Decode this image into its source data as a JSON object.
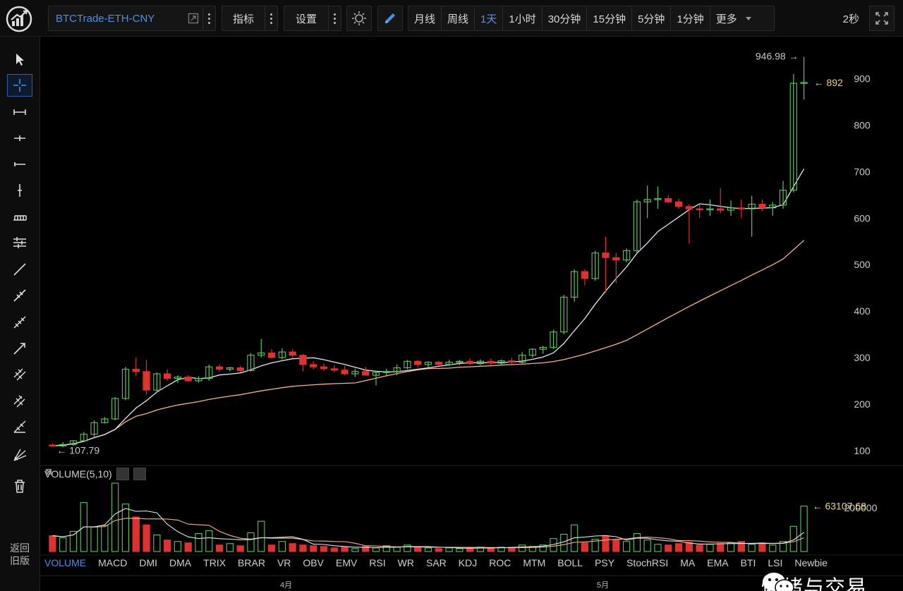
{
  "toolbar": {
    "symbol": "BTCTrade-ETH-CNY",
    "indicators_label": "指标",
    "settings_label": "设置",
    "timeframes": [
      "月线",
      "周线",
      "1天",
      "1小时",
      "30分钟",
      "15分钟",
      "5分钟",
      "1分钟",
      "更多"
    ],
    "active_timeframe": "1天",
    "refresh": "2秒"
  },
  "sidebar": {
    "tools": [
      "cursor-arrow",
      "crosshair",
      "segment",
      "ray-line",
      "horizontal-line",
      "vertical-line",
      "price-range",
      "parallel-lines",
      "trend-line",
      "trend-channel",
      "parallel-channel",
      "arrow-line",
      "fibonacci-fan",
      "gann-fan",
      "speed-lines",
      "pitchfork",
      "trash"
    ],
    "back_old": [
      "返回",
      "旧版"
    ]
  },
  "chart": {
    "price_axis": [
      "900",
      "800",
      "700",
      "600",
      "500",
      "400",
      "300",
      "200",
      "100"
    ],
    "high_label": "946.98 →",
    "last_price_label": "← 892",
    "low_label": "← 107.79",
    "volume_header": "VOLUME(5,10)",
    "volume_axis": "200000",
    "volume_last_label": "← 63107.68",
    "indicators": [
      "VOLUME",
      "MACD",
      "DMI",
      "DMA",
      "TRIX",
      "BRAR",
      "VR",
      "OBV",
      "EMV",
      "RSI",
      "WR",
      "SAR",
      "KDJ",
      "ROC",
      "MTM",
      "BOLL",
      "PSY",
      "StochRSI",
      "MA",
      "EMA",
      "BTI",
      "LSI",
      "Newbie"
    ],
    "active_indicator": "VOLUME",
    "months": [
      "4月",
      "5月"
    ]
  },
  "watermark": {
    "text": "情绪与交易",
    "icon": "wechat-icon"
  },
  "colors": {
    "up": "#5fc45f",
    "down": "#e03131",
    "ma_short": "#dfe8f5",
    "ma_long": "#f5b38a",
    "accent": "#4a8fe8"
  },
  "chart_data": {
    "type": "candlestick",
    "ylim": [
      80,
      960
    ],
    "candles": [
      [
        112,
        115,
        108,
        110
      ],
      [
        110,
        118,
        107,
        113
      ],
      [
        113,
        122,
        110,
        121
      ],
      [
        121,
        140,
        118,
        135
      ],
      [
        135,
        165,
        128,
        160
      ],
      [
        160,
        172,
        158,
        168
      ],
      [
        168,
        215,
        165,
        212
      ],
      [
        212,
        280,
        208,
        275
      ],
      [
        275,
        300,
        260,
        270
      ],
      [
        270,
        295,
        220,
        230
      ],
      [
        230,
        268,
        225,
        265
      ],
      [
        265,
        275,
        250,
        255
      ],
      [
        255,
        262,
        245,
        258
      ],
      [
        258,
        262,
        248,
        250
      ],
      [
        250,
        260,
        246,
        255
      ],
      [
        255,
        285,
        250,
        280
      ],
      [
        280,
        285,
        270,
        275
      ],
      [
        275,
        280,
        270,
        278
      ],
      [
        278,
        282,
        268,
        272
      ],
      [
        272,
        310,
        270,
        305
      ],
      [
        305,
        340,
        300,
        310
      ],
      [
        310,
        318,
        298,
        300
      ],
      [
        300,
        320,
        296,
        312
      ],
      [
        312,
        318,
        300,
        305
      ],
      [
        305,
        308,
        270,
        285
      ],
      [
        285,
        292,
        275,
        280
      ],
      [
        280,
        288,
        272,
        276
      ],
      [
        276,
        284,
        268,
        273
      ],
      [
        273,
        282,
        262,
        265
      ],
      [
        265,
        276,
        258,
        270
      ],
      [
        270,
        280,
        262,
        262
      ],
      [
        262,
        272,
        240,
        268
      ],
      [
        268,
        276,
        260,
        270
      ],
      [
        270,
        285,
        262,
        278
      ],
      [
        278,
        295,
        275,
        292
      ],
      [
        292,
        295,
        280,
        285
      ],
      [
        285,
        292,
        278,
        290
      ],
      [
        290,
        293,
        282,
        285
      ],
      [
        285,
        295,
        282,
        290
      ],
      [
        290,
        295,
        283,
        292
      ],
      [
        292,
        298,
        284,
        287
      ],
      [
        287,
        296,
        284,
        292
      ],
      [
        292,
        298,
        284,
        288
      ],
      [
        288,
        296,
        283,
        293
      ],
      [
        293,
        300,
        286,
        290
      ],
      [
        290,
        312,
        286,
        305
      ],
      [
        305,
        320,
        300,
        318
      ],
      [
        318,
        325,
        308,
        322
      ],
      [
        322,
        360,
        318,
        355
      ],
      [
        355,
        435,
        350,
        430
      ],
      [
        430,
        490,
        420,
        485
      ],
      [
        485,
        490,
        455,
        470
      ],
      [
        470,
        530,
        465,
        525
      ],
      [
        525,
        560,
        440,
        515
      ],
      [
        515,
        525,
        460,
        510
      ],
      [
        510,
        535,
        505,
        530
      ],
      [
        530,
        640,
        525,
        635
      ],
      [
        635,
        670,
        600,
        640
      ],
      [
        640,
        668,
        620,
        642
      ],
      [
        642,
        650,
        632,
        635
      ],
      [
        635,
        642,
        620,
        625
      ],
      [
        625,
        630,
        545,
        620
      ],
      [
        620,
        630,
        600,
        618
      ],
      [
        618,
        640,
        605,
        620
      ],
      [
        620,
        665,
        610,
        617
      ],
      [
        617,
        638,
        605,
        622
      ],
      [
        622,
        640,
        600,
        620
      ],
      [
        620,
        648,
        560,
        630
      ],
      [
        630,
        640,
        615,
        622
      ],
      [
        622,
        635,
        605,
        628
      ],
      [
        628,
        680,
        620,
        660
      ],
      [
        660,
        910,
        655,
        890
      ],
      [
        890,
        946.98,
        855,
        892
      ]
    ],
    "volumes": [
      22000,
      19000,
      28000,
      68000,
      34000,
      36000,
      95000,
      66000,
      48000,
      37000,
      23000,
      16000,
      14000,
      12000,
      25000,
      29000,
      9000,
      11000,
      8000,
      26000,
      42000,
      9000,
      14000,
      11000,
      9000,
      8000,
      7000,
      5000,
      6000,
      4000,
      7000,
      5000,
      8000,
      6000,
      9000,
      6000,
      5000,
      4000,
      5000,
      4000,
      5000,
      6000,
      5000,
      6000,
      6000,
      9000,
      7000,
      9000,
      18000,
      24000,
      37000,
      12000,
      17000,
      21000,
      16000,
      14000,
      25000,
      16000,
      10000,
      9000,
      11000,
      13000,
      9000,
      10000,
      11000,
      12000,
      14000,
      10000,
      12000,
      9000,
      14000,
      35000,
      63107.68
    ],
    "vol_ylim": [
      0,
      100000
    ]
  }
}
